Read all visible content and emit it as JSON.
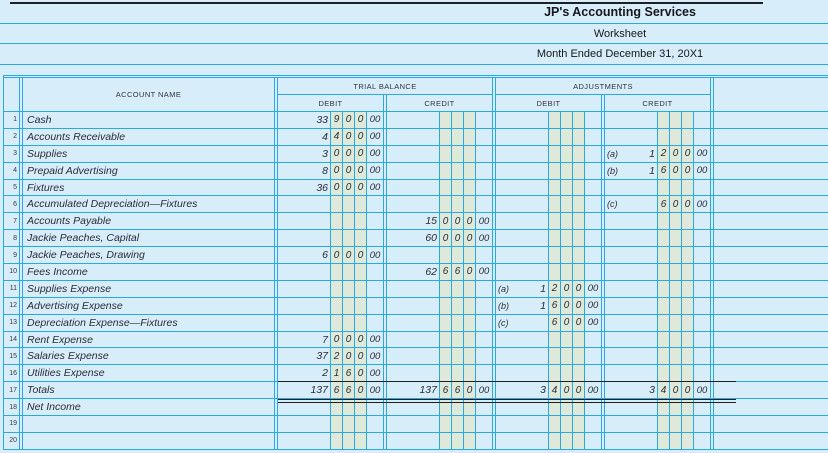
{
  "header": {
    "company": "JP's Accounting Services",
    "title": "Worksheet",
    "period": "Month Ended December 31, 20X1"
  },
  "table": {
    "account_name_header": "ACCOUNT NAME",
    "sections": {
      "trial_balance": "TRIAL BALANCE",
      "adjustments": "ADJUSTMENTS",
      "debit": "DEBIT",
      "credit": "CREDIT"
    },
    "rows": [
      {
        "n": "1",
        "name": "Cash",
        "tb_debit": {
          "v": [
            "33",
            "9",
            "0",
            "0",
            "00"
          ]
        }
      },
      {
        "n": "2",
        "name": "Accounts Receivable",
        "tb_debit": {
          "v": [
            "4",
            "4",
            "0",
            "0",
            "00"
          ]
        }
      },
      {
        "n": "3",
        "name": "Supplies",
        "tb_debit": {
          "v": [
            "3",
            "0",
            "0",
            "0",
            "00"
          ]
        },
        "adj_credit": {
          "label": "(a)",
          "v": [
            "1",
            "2",
            "0",
            "0",
            "00"
          ]
        }
      },
      {
        "n": "4",
        "name": "Prepaid Advertising",
        "tb_debit": {
          "v": [
            "8",
            "0",
            "0",
            "0",
            "00"
          ]
        },
        "adj_credit": {
          "label": "(b)",
          "v": [
            "1",
            "6",
            "0",
            "0",
            "00"
          ]
        }
      },
      {
        "n": "5",
        "name": "Fixtures",
        "tb_debit": {
          "v": [
            "36",
            "0",
            "0",
            "0",
            "00"
          ]
        }
      },
      {
        "n": "6",
        "name": "Accumulated Depreciation—Fixtures",
        "adj_credit": {
          "label": "(c)",
          "v": [
            "",
            "6",
            "0",
            "0",
            "00"
          ]
        }
      },
      {
        "n": "7",
        "name": "Accounts Payable",
        "tb_credit": {
          "v": [
            "15",
            "0",
            "0",
            "0",
            "00"
          ]
        }
      },
      {
        "n": "8",
        "name": "Jackie Peaches, Capital",
        "tb_credit": {
          "v": [
            "60",
            "0",
            "0",
            "0",
            "00"
          ]
        }
      },
      {
        "n": "9",
        "name": "Jackie Peaches, Drawing",
        "tb_debit": {
          "v": [
            "6",
            "0",
            "0",
            "0",
            "00"
          ]
        }
      },
      {
        "n": "10",
        "name": "Fees Income",
        "tb_credit": {
          "v": [
            "62",
            "6",
            "6",
            "0",
            "00"
          ]
        }
      },
      {
        "n": "11",
        "name": "Supplies Expense",
        "adj_debit": {
          "label": "(a)",
          "v": [
            "1",
            "2",
            "0",
            "0",
            "00"
          ]
        }
      },
      {
        "n": "12",
        "name": "Advertising Expense",
        "adj_debit": {
          "label": "(b)",
          "v": [
            "1",
            "6",
            "0",
            "0",
            "00"
          ]
        }
      },
      {
        "n": "13",
        "name": "Depreciation Expense—Fixtures",
        "adj_debit": {
          "label": "(c)",
          "v": [
            "",
            "6",
            "0",
            "0",
            "00"
          ]
        }
      },
      {
        "n": "14",
        "name": "Rent Expense",
        "tb_debit": {
          "v": [
            "7",
            "0",
            "0",
            "0",
            "00"
          ]
        }
      },
      {
        "n": "15",
        "name": "Salaries Expense",
        "tb_debit": {
          "v": [
            "37",
            "2",
            "0",
            "0",
            "00"
          ]
        }
      },
      {
        "n": "16",
        "name": "Utilities Expense",
        "tb_debit": {
          "v": [
            "2",
            "1",
            "6",
            "0",
            "00"
          ]
        }
      },
      {
        "n": "17",
        "name": "Totals",
        "totals": true,
        "tb_debit": {
          "v": [
            "137",
            "6",
            "6",
            "0",
            "00"
          ]
        },
        "tb_credit": {
          "v": [
            "137",
            "6",
            "6",
            "0",
            "00"
          ]
        },
        "adj_debit": {
          "v": [
            "3",
            "4",
            "0",
            "0",
            "00"
          ]
        },
        "adj_credit": {
          "v": [
            "3",
            "4",
            "0",
            "0",
            "00"
          ]
        }
      },
      {
        "n": "18",
        "name": "Net Income"
      },
      {
        "n": "19",
        "name": ""
      },
      {
        "n": "20",
        "name": ""
      }
    ]
  },
  "colors": {
    "grid_line": "#2aa9e0",
    "paper_background": "#d8edfa",
    "digit_column_background": "#dfe9d9",
    "totals_rule": "#1f1f24"
  }
}
